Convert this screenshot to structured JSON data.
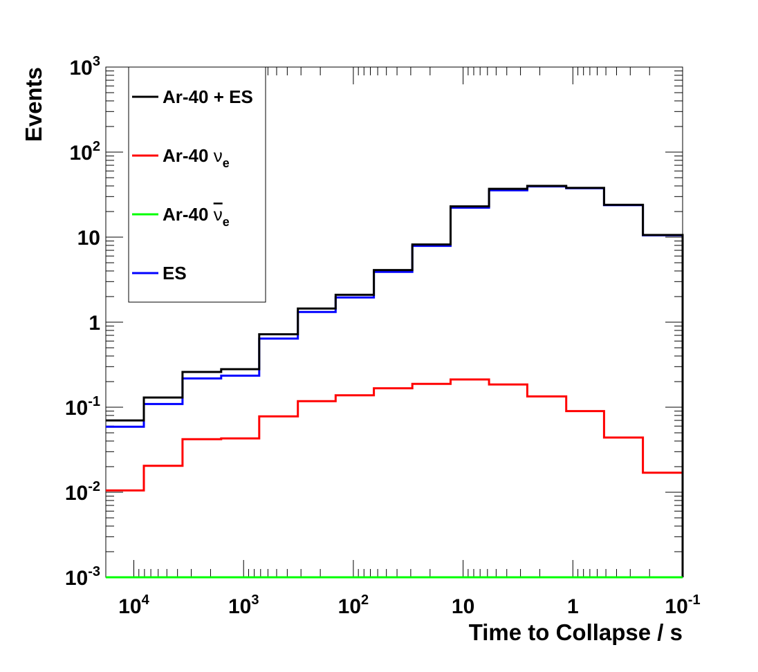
{
  "chart_data": {
    "type": "line",
    "step": true,
    "title": "",
    "xlabel": "Time to Collapse / s",
    "ylabel": "Events",
    "x_scale": "log",
    "x_reversed": true,
    "y_scale": "log",
    "xlim": [
      18000,
      0.1
    ],
    "ylim": [
      0.001,
      1000
    ],
    "x_ticks": [
      {
        "value": 10000,
        "base": "10",
        "exp": "4"
      },
      {
        "value": 1000,
        "base": "10",
        "exp": "3"
      },
      {
        "value": 100,
        "base": "10",
        "exp": "2"
      },
      {
        "value": 10,
        "base": "10",
        "exp": ""
      },
      {
        "value": 1,
        "base": "1",
        "exp": ""
      },
      {
        "value": 0.1,
        "base": "10",
        "exp": "-1"
      }
    ],
    "y_ticks": [
      {
        "value": 1000,
        "base": "10",
        "exp": "3"
      },
      {
        "value": 100,
        "base": "10",
        "exp": "2"
      },
      {
        "value": 10,
        "base": "10",
        "exp": ""
      },
      {
        "value": 1,
        "base": "1",
        "exp": ""
      },
      {
        "value": 0.1,
        "base": "10",
        "exp": "-1"
      },
      {
        "value": 0.01,
        "base": "10",
        "exp": "-2"
      },
      {
        "value": 0.001,
        "base": "10",
        "exp": "-3"
      }
    ],
    "bin_edges": [
      18000,
      8100,
      3600,
      1600,
      720,
      320,
      145,
      65,
      29,
      13,
      5.8,
      2.6,
      1.15,
      0.52,
      0.23,
      0.1
    ],
    "series": [
      {
        "name": "Ar-40 + ES",
        "color": "#000000",
        "values": [
          0.07,
          0.13,
          0.26,
          0.28,
          0.72,
          1.45,
          2.1,
          4.1,
          8.2,
          23,
          37,
          40,
          38,
          24,
          10.6
        ]
      },
      {
        "name": "Ar-40 ν_e",
        "color": "#ff0000",
        "values": [
          0.0105,
          0.0205,
          0.042,
          0.043,
          0.078,
          0.118,
          0.138,
          0.167,
          0.188,
          0.212,
          0.185,
          0.134,
          0.09,
          0.044,
          0.017
        ]
      },
      {
        "name": "Ar-40 ν̄_e",
        "color": "#00ff00",
        "values": [
          0.001,
          0.001,
          0.001,
          0.001,
          0.001,
          0.001,
          0.001,
          0.001,
          0.001,
          0.001,
          0.001,
          0.001,
          0.001,
          0.001,
          0.001
        ]
      },
      {
        "name": "ES",
        "color": "#0000ff",
        "values": [
          0.059,
          0.109,
          0.218,
          0.235,
          0.64,
          1.32,
          1.95,
          3.9,
          7.9,
          22.2,
          35.5,
          39.5,
          37.6,
          23.8,
          10.5
        ]
      }
    ],
    "legend": {
      "placement": "top-left",
      "entries": [
        {
          "series": 0,
          "label": "Ar-40 + ES",
          "symbol": "",
          "subscript": ""
        },
        {
          "series": 1,
          "label": "Ar-40 ",
          "symbol": "ν",
          "subscript": "e",
          "bar": false
        },
        {
          "series": 2,
          "label": "Ar-40 ",
          "symbol": "ν",
          "subscript": "e",
          "bar": true
        },
        {
          "series": 3,
          "label": "ES",
          "symbol": "",
          "subscript": ""
        }
      ]
    }
  }
}
